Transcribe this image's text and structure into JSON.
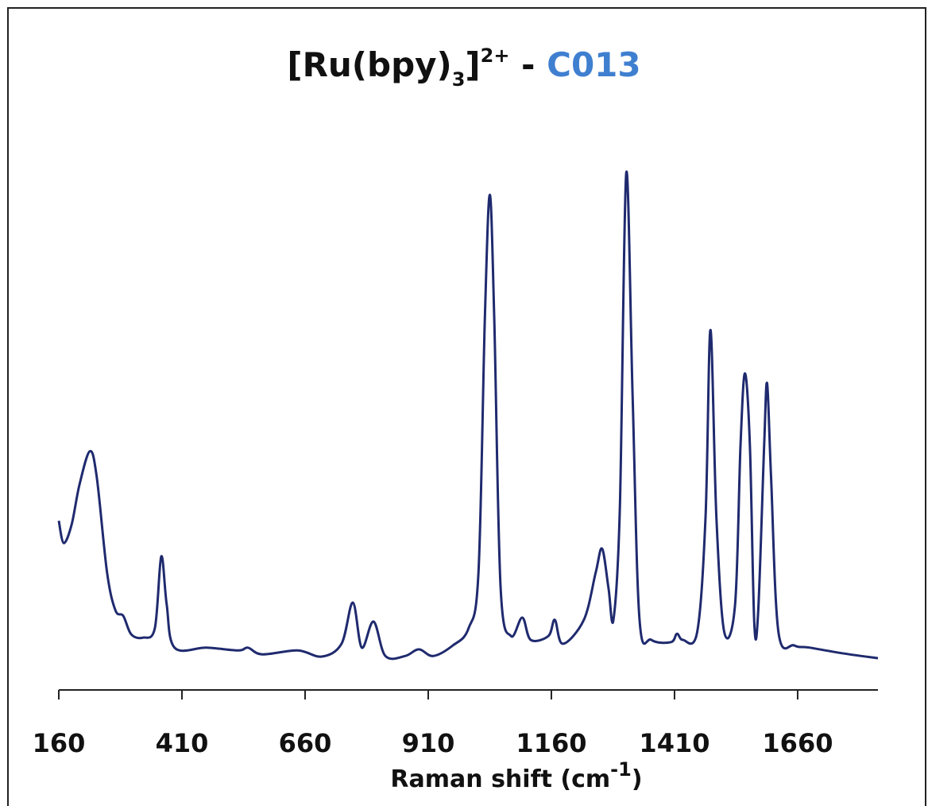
{
  "chart_data": {
    "type": "line",
    "title": [
      "[Ru(bpy)",
      "3",
      "]",
      "2+",
      " - ",
      "C013"
    ],
    "x_label": [
      "Raman shift (cm",
      "-1",
      ")"
    ],
    "xlim": [
      160,
      1823
    ],
    "xticks": [
      160,
      410,
      660,
      910,
      1160,
      1410,
      1660
    ],
    "ylim": [
      0,
      100
    ],
    "series": [
      {
        "color": "#1f2a6e",
        "x": [
          160,
          170,
          186,
          202,
          223,
          237,
          258,
          275,
          291,
          307,
          331,
          355,
          368,
          379,
          395,
          460,
          525,
          544,
          573,
          645,
          694,
          734,
          757,
          775,
          799,
          823,
          863,
          891,
          920,
          960,
          992,
          1012,
          1025,
          1035,
          1044,
          1057,
          1078,
          1101,
          1118,
          1154,
          1167,
          1183,
          1226,
          1250,
          1263,
          1276,
          1286,
          1299,
          1312,
          1325,
          1339,
          1363,
          1403,
          1415,
          1427,
          1456,
          1473,
          1483,
          1495,
          1511,
          1533,
          1544,
          1553,
          1563,
          1572,
          1580,
          1592,
          1598,
          1606,
          1621,
          1653,
          1685,
          1750,
          1823
        ],
        "values": [
          30.4,
          26.4,
          29.7,
          36.9,
          42.9,
          38.3,
          21.1,
          14.3,
          13.3,
          10,
          9.4,
          11.1,
          24,
          15.4,
          7.6,
          7.6,
          7.1,
          7.6,
          6.4,
          7.1,
          6,
          8.3,
          15.7,
          7.6,
          12.3,
          6.1,
          6.1,
          7.3,
          6.1,
          8,
          11.1,
          21.1,
          66.9,
          89,
          66.9,
          18.3,
          9.7,
          13,
          9,
          9.7,
          12.6,
          8.3,
          12.6,
          21.1,
          25.4,
          18.3,
          12.6,
          32.6,
          92.9,
          52.6,
          12.6,
          9,
          8.6,
          10.1,
          9,
          10.4,
          31.1,
          64.7,
          31.1,
          10.4,
          15.4,
          44,
          56.9,
          44,
          11.9,
          14.3,
          44,
          55.1,
          38.3,
          10.4,
          8,
          7.6,
          6.6,
          5.7
        ]
      }
    ]
  }
}
